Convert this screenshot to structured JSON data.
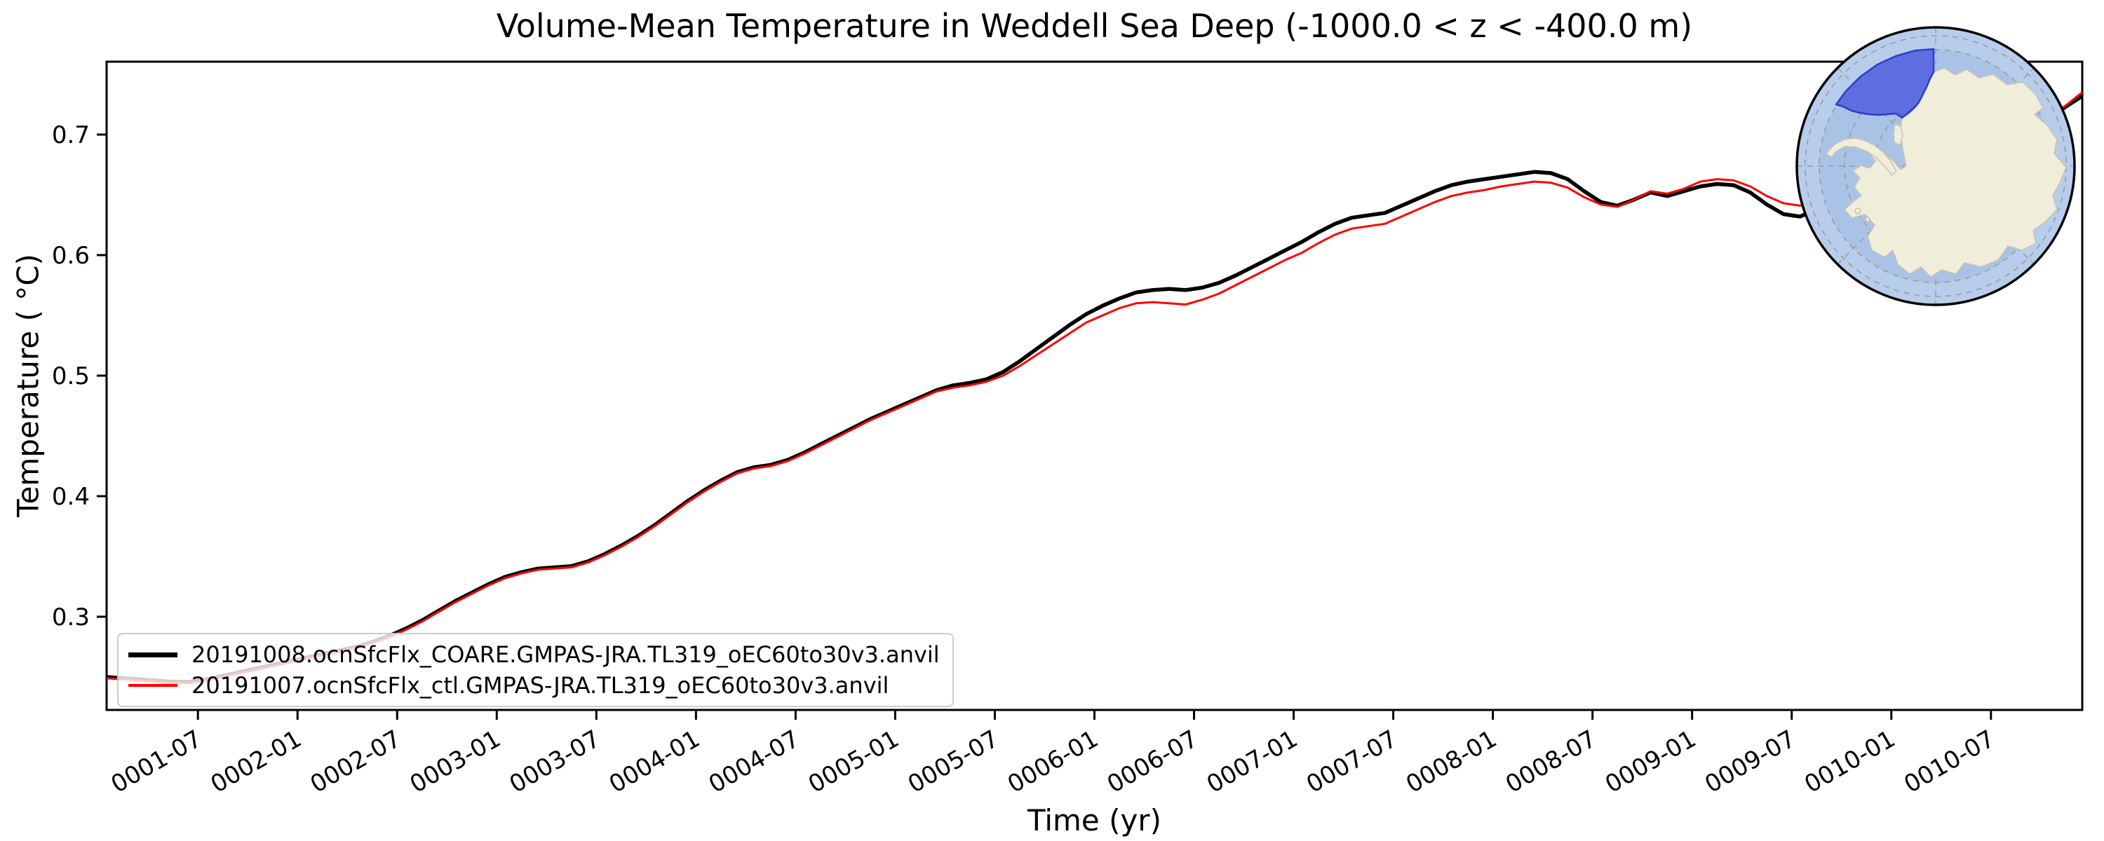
{
  "title": "Volume-Mean Temperature in Weddell Sea Deep (-1000.0 < z < -400.0 m)",
  "axes": {
    "xlabel": "Time (yr)",
    "ylabel": "Temperature ( °C)"
  },
  "legend": {
    "entries": [
      {
        "label": "20191008.ocnSfcFlx_COARE.GMPAS-JRA.TL319_oEC60to30v3.anvil",
        "color": "#000000"
      },
      {
        "label": "20191007.ocnSfcFlx_ctl.GMPAS-JRA.TL319_oEC60to30v3.anvil",
        "color": "#ff0000"
      }
    ],
    "position": "lower left"
  },
  "inset_map": {
    "description": "south-polar-stereographic-antarctica-inset-with-weddell-sea-region-highlight",
    "colors": {
      "ocean_inner": "#a9c3e6",
      "ocean_outer": "#b7cdeb",
      "land": "#f0eedb",
      "land_border": "#c6c3ae",
      "region_fill": "#4a59de",
      "region_border": "#2e3dcc",
      "graticule": "#999999",
      "rim": "#000000"
    }
  },
  "chart_data": {
    "type": "line",
    "title": "Volume-Mean Temperature in Weddell Sea Deep (-1000.0 < z < -400.0 m)",
    "xlabel": "Time (yr)",
    "ylabel": "Temperature ( °C)",
    "grid": false,
    "legend_position": "lower left",
    "x_unit": "month-index-from-0001-01",
    "x_months_total": 120,
    "xlim_months": [
      1,
      120
    ],
    "ylim": [
      0.2227,
      0.7605
    ],
    "y_ticks": [
      0.3,
      0.4,
      0.5,
      0.6,
      0.7
    ],
    "y_tick_labels": [
      "0.3",
      "0.4",
      "0.5",
      "0.6",
      "0.7"
    ],
    "x_ticks": {
      "month_index": [
        7,
        13,
        19,
        25,
        31,
        37,
        43,
        49,
        55,
        61,
        67,
        73,
        79,
        85,
        91,
        97,
        103,
        109,
        115
      ],
      "labels": [
        "0001-07",
        "0002-01",
        "0002-07",
        "0003-01",
        "0003-07",
        "0004-01",
        "0004-07",
        "0005-01",
        "0005-07",
        "0006-01",
        "0006-07",
        "0007-01",
        "0007-07",
        "0008-01",
        "0008-07",
        "0009-01",
        "0009-07",
        "0010-01",
        "0010-07"
      ]
    },
    "series": [
      {
        "name": "20191008.ocnSfcFlx_COARE.GMPAS-JRA.TL319_oEC60to30v3.anvil",
        "color": "#000000",
        "linewidth": 5.5,
        "values": [
          0.25,
          0.249,
          0.248,
          0.247,
          0.246,
          0.246,
          0.248,
          0.251,
          0.254,
          0.257,
          0.26,
          0.263,
          0.266,
          0.269,
          0.272,
          0.275,
          0.279,
          0.284,
          0.29,
          0.297,
          0.305,
          0.313,
          0.32,
          0.327,
          0.333,
          0.337,
          0.34,
          0.341,
          0.342,
          0.346,
          0.352,
          0.359,
          0.367,
          0.376,
          0.386,
          0.396,
          0.405,
          0.413,
          0.42,
          0.424,
          0.426,
          0.43,
          0.436,
          0.443,
          0.45,
          0.457,
          0.464,
          0.47,
          0.476,
          0.482,
          0.488,
          0.492,
          0.494,
          0.497,
          0.503,
          0.512,
          0.522,
          0.532,
          0.542,
          0.551,
          0.558,
          0.564,
          0.569,
          0.571,
          0.572,
          0.571,
          0.573,
          0.577,
          0.583,
          0.59,
          0.597,
          0.604,
          0.611,
          0.619,
          0.626,
          0.631,
          0.633,
          0.635,
          0.641,
          0.647,
          0.653,
          0.658,
          0.661,
          0.663,
          0.665,
          0.667,
          0.669,
          0.668,
          0.663,
          0.653,
          0.644,
          0.641,
          0.646,
          0.652,
          0.649,
          0.653,
          0.657,
          0.659,
          0.658,
          0.652,
          0.642,
          0.634,
          0.632,
          0.638,
          0.647,
          0.655,
          0.662,
          0.667,
          0.669,
          0.671,
          0.673,
          0.676,
          0.68,
          0.685,
          0.691,
          0.698,
          0.706,
          0.714,
          0.723,
          0.732
        ]
      },
      {
        "name": "20191007.ocnSfcFlx_ctl.GMPAS-JRA.TL319_oEC60to30v3.anvil",
        "color": "#ff0000",
        "linewidth": 3,
        "values": [
          0.249,
          0.248,
          0.247,
          0.246,
          0.245,
          0.245,
          0.247,
          0.25,
          0.253,
          0.256,
          0.259,
          0.262,
          0.265,
          0.268,
          0.271,
          0.274,
          0.278,
          0.283,
          0.289,
          0.296,
          0.304,
          0.312,
          0.319,
          0.326,
          0.332,
          0.336,
          0.339,
          0.34,
          0.341,
          0.345,
          0.351,
          0.358,
          0.366,
          0.375,
          0.385,
          0.395,
          0.404,
          0.412,
          0.419,
          0.423,
          0.425,
          0.429,
          0.435,
          0.442,
          0.449,
          0.456,
          0.463,
          0.469,
          0.475,
          0.481,
          0.487,
          0.49,
          0.492,
          0.495,
          0.5,
          0.508,
          0.517,
          0.526,
          0.535,
          0.544,
          0.55,
          0.556,
          0.56,
          0.561,
          0.56,
          0.559,
          0.563,
          0.568,
          0.575,
          0.582,
          0.589,
          0.596,
          0.602,
          0.61,
          0.617,
          0.622,
          0.624,
          0.626,
          0.632,
          0.638,
          0.644,
          0.649,
          0.652,
          0.654,
          0.657,
          0.659,
          0.661,
          0.66,
          0.656,
          0.648,
          0.642,
          0.64,
          0.646,
          0.653,
          0.651,
          0.655,
          0.661,
          0.663,
          0.662,
          0.657,
          0.649,
          0.643,
          0.641,
          0.646,
          0.653,
          0.659,
          0.664,
          0.668,
          0.67,
          0.672,
          0.674,
          0.677,
          0.681,
          0.686,
          0.692,
          0.699,
          0.707,
          0.715,
          0.724,
          0.735
        ]
      }
    ]
  }
}
